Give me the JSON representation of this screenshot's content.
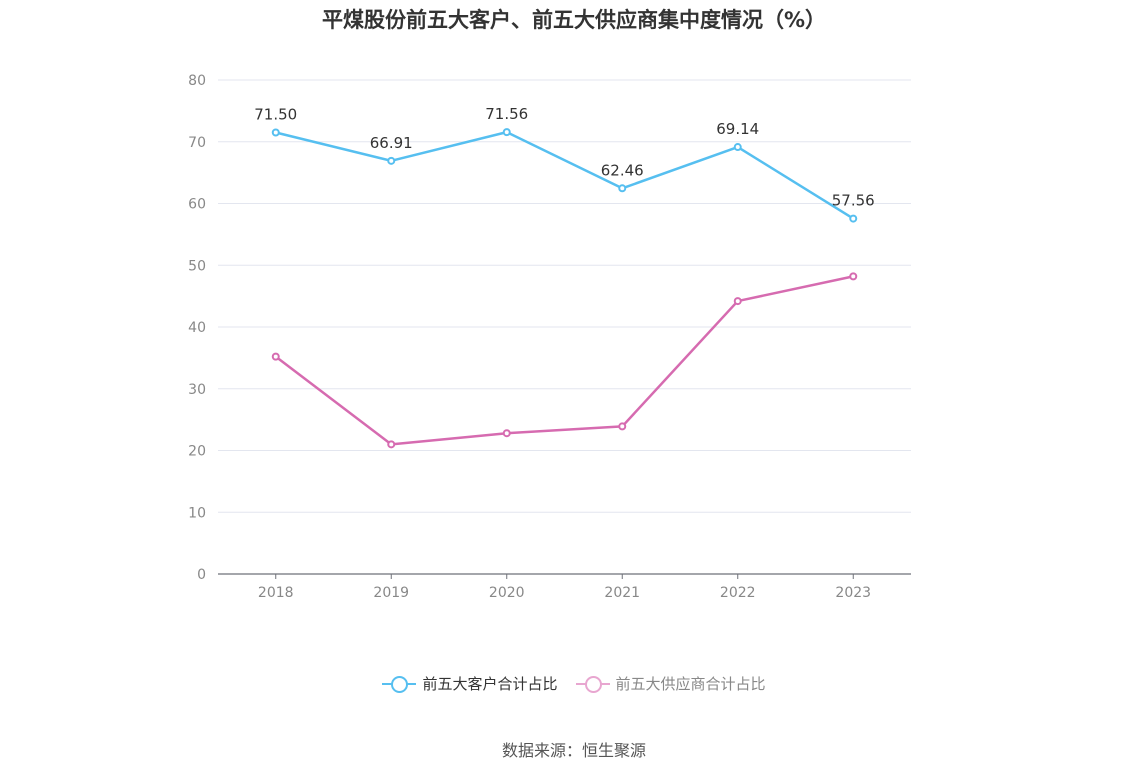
{
  "title": "平煤股份前五大客户、前五大供应商集中度情况（%）",
  "source": "数据来源：恒生聚源",
  "legend": [
    {
      "name": "前五大客户合计占比",
      "color": "#5bc0eb",
      "active": true
    },
    {
      "name": "前五大供应商合计占比",
      "color": "#e8a6d0",
      "active": false
    }
  ],
  "chart_data": {
    "type": "line",
    "categories": [
      "2018",
      "2019",
      "2020",
      "2021",
      "2022",
      "2023"
    ],
    "ylim": [
      0,
      80
    ],
    "yticks": [
      "0",
      "10",
      "20",
      "30",
      "40",
      "50",
      "60",
      "70",
      "80"
    ],
    "grid": true,
    "series": [
      {
        "name": "前五大客户合计占比",
        "color": "#56bff0",
        "values": [
          71.5,
          66.91,
          71.56,
          62.46,
          69.14,
          57.56
        ],
        "labels": [
          "71.50",
          "66.91",
          "71.56",
          "62.46",
          "69.14",
          "57.56"
        ]
      },
      {
        "name": "前五大供应商合计占比",
        "color": "#d66bb0",
        "values": [
          35.2,
          21.0,
          22.8,
          23.9,
          44.2,
          48.2
        ],
        "labels": []
      }
    ]
  }
}
